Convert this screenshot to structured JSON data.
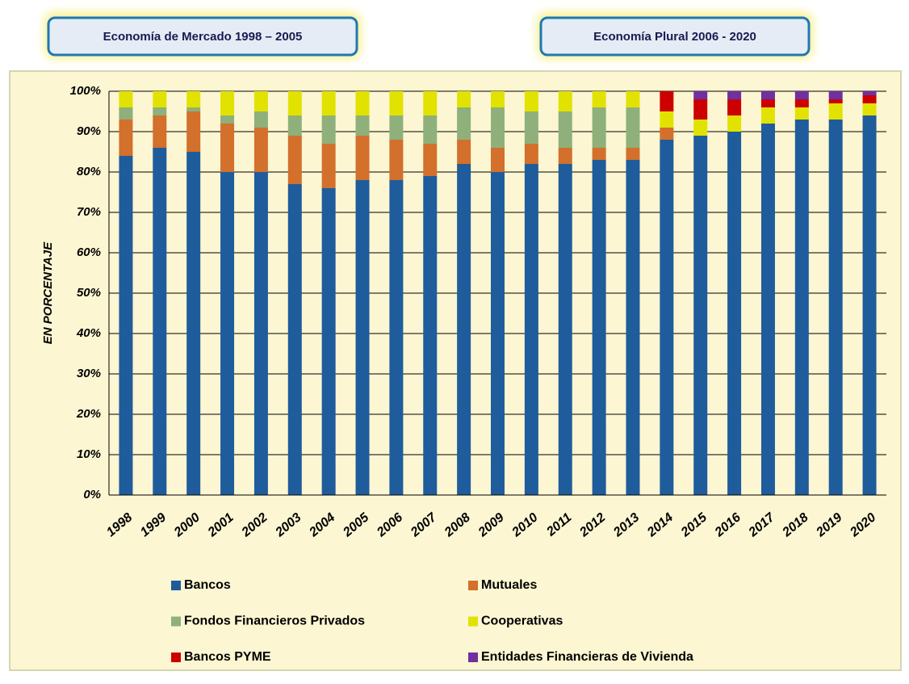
{
  "chart_data": {
    "type": "stacked_bar",
    "annotations": [
      "Economía de Mercado 1998 – 2005",
      "Economía Plural 2006 - 2020"
    ],
    "y_label": "EN PORCENTAJE",
    "categories": [
      "1998",
      "1999",
      "2000",
      "2001",
      "2002",
      "2003",
      "2004",
      "2005",
      "2006",
      "2007",
      "2008",
      "2009",
      "2010",
      "2011",
      "2012",
      "2013",
      "2014",
      "2015",
      "2016",
      "2017",
      "2018",
      "2019",
      "2020"
    ],
    "series": [
      {
        "name": "Bancos",
        "color": "#1f5c9c",
        "values": [
          84,
          86,
          85,
          80,
          80,
          77,
          76,
          78,
          78,
          79,
          82,
          80,
          82,
          82,
          83,
          83,
          88,
          89,
          90,
          92,
          93,
          93,
          94
        ]
      },
      {
        "name": "Mutuales",
        "color": "#d2702c",
        "values": [
          9,
          8,
          10,
          12,
          11,
          12,
          11,
          11,
          10,
          8,
          6,
          6,
          5,
          4,
          3,
          3,
          3,
          0,
          0,
          0,
          0,
          0,
          0
        ]
      },
      {
        "name": "Fondos Financieros Privados",
        "color": "#8fb07a",
        "values": [
          3,
          2,
          1,
          2,
          4,
          5,
          7,
          5,
          6,
          7,
          8,
          10,
          8,
          9,
          10,
          10,
          0,
          0,
          0,
          0,
          0,
          0,
          0
        ]
      },
      {
        "name": "Cooperativas",
        "color": "#e2e200",
        "values": [
          4,
          4,
          4,
          6,
          5,
          6,
          6,
          6,
          6,
          6,
          4,
          4,
          5,
          5,
          4,
          4,
          4,
          4,
          4,
          4,
          3,
          4,
          3
        ]
      },
      {
        "name": "Bancos PYME",
        "color": "#cc0000",
        "values": [
          0,
          0,
          0,
          0,
          0,
          0,
          0,
          0,
          0,
          0,
          0,
          0,
          0,
          0,
          0,
          0,
          5,
          5,
          4,
          2,
          2,
          1,
          2
        ]
      },
      {
        "name": "Entidades Financieras de Vivienda",
        "color": "#7030a0",
        "values": [
          0,
          0,
          0,
          0,
          0,
          0,
          0,
          0,
          0,
          0,
          0,
          0,
          0,
          0,
          0,
          0,
          0,
          2,
          2,
          2,
          2,
          2,
          1
        ]
      }
    ],
    "ylim": [
      0,
      100
    ],
    "yticks": [
      {
        "value": 0,
        "label": "0%"
      },
      {
        "value": 10,
        "label": "10%"
      },
      {
        "value": 20,
        "label": "20%"
      },
      {
        "value": 30,
        "label": "30%"
      },
      {
        "value": 40,
        "label": "40%"
      },
      {
        "value": 50,
        "label": "50%"
      },
      {
        "value": 60,
        "label": "60%"
      },
      {
        "value": 70,
        "label": "70%"
      },
      {
        "value": 80,
        "label": "80%"
      },
      {
        "value": 90,
        "label": "90%"
      },
      {
        "value": 100,
        "label": "100%"
      }
    ],
    "grid": true,
    "legend": "bottom"
  }
}
